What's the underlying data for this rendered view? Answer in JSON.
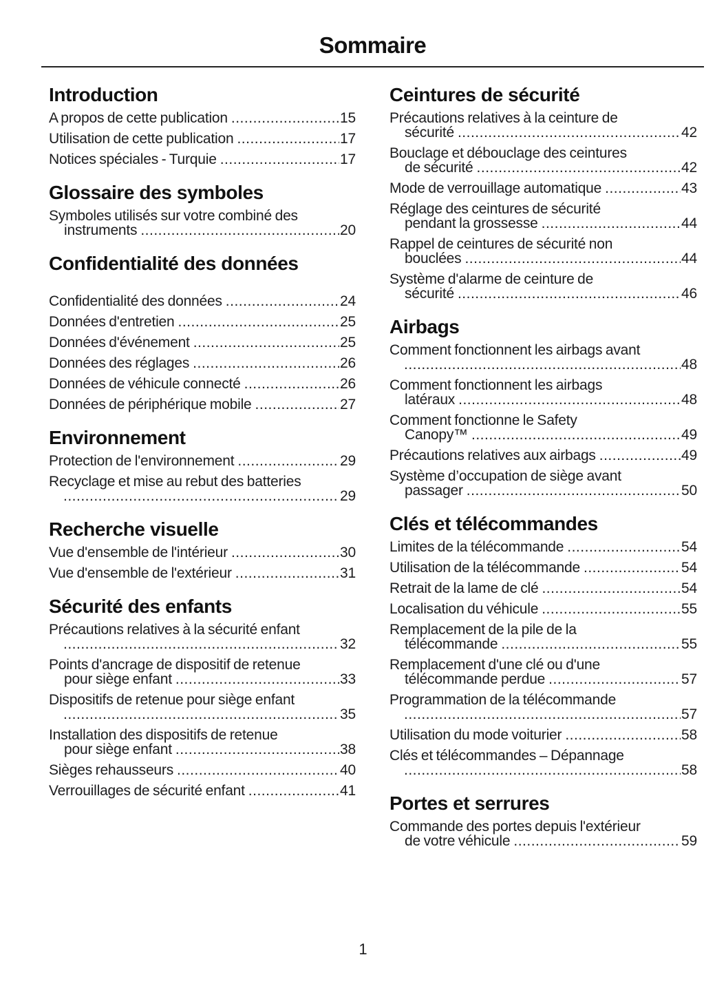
{
  "page": {
    "title": "Sommaire",
    "page_number": "1"
  },
  "columns": [
    {
      "sections": [
        {
          "heading": "Introduction",
          "spaced": false,
          "entries": [
            {
              "lines": [
                {
                  "text": "A propos de cette publication",
                  "page": "15"
                }
              ]
            },
            {
              "lines": [
                {
                  "text": "Utilisation de cette publication",
                  "page": "17"
                }
              ]
            },
            {
              "lines": [
                {
                  "text": "Notices spéciales - Turquie",
                  "page": "17"
                }
              ]
            }
          ]
        },
        {
          "heading": "Glossaire des symboles",
          "spaced": false,
          "entries": [
            {
              "lines": [
                {
                  "text": "Symboles utilisés sur votre combiné des"
                },
                {
                  "text": "instruments",
                  "page": "20"
                }
              ]
            }
          ]
        },
        {
          "heading": "Confidentialité des données",
          "spaced": true,
          "entries": [
            {
              "lines": [
                {
                  "text": "Confidentialité des données",
                  "page": "24"
                }
              ]
            },
            {
              "lines": [
                {
                  "text": "Données d'entretien",
                  "page": "25"
                }
              ]
            },
            {
              "lines": [
                {
                  "text": "Données d'événement",
                  "page": "25"
                }
              ]
            },
            {
              "lines": [
                {
                  "text": "Données des réglages",
                  "page": "26"
                }
              ]
            },
            {
              "lines": [
                {
                  "text": "Données de véhicule connecté",
                  "page": "26"
                }
              ]
            },
            {
              "lines": [
                {
                  "text": "Données de périphérique mobile",
                  "page": "27"
                }
              ]
            }
          ]
        },
        {
          "heading": "Environnement",
          "spaced": false,
          "entries": [
            {
              "lines": [
                {
                  "text": "Protection de l'environnement",
                  "page": "29"
                }
              ]
            },
            {
              "lines": [
                {
                  "text": "Recyclage et mise au rebut des batteries"
                },
                {
                  "text": "",
                  "page": "29"
                }
              ]
            }
          ]
        },
        {
          "heading": "Recherche visuelle",
          "spaced": false,
          "entries": [
            {
              "lines": [
                {
                  "text": "Vue d'ensemble de l'intérieur",
                  "page": "30"
                }
              ]
            },
            {
              "lines": [
                {
                  "text": "Vue d'ensemble de l'extérieur",
                  "page": "31"
                }
              ]
            }
          ]
        },
        {
          "heading": "Sécurité des enfants",
          "spaced": false,
          "entries": [
            {
              "lines": [
                {
                  "text": "Précautions relatives à la sécurité enfant"
                },
                {
                  "text": "",
                  "page": "32"
                }
              ]
            },
            {
              "lines": [
                {
                  "text": "Points d'ancrage de dispositif de retenue"
                },
                {
                  "text": "pour siège enfant",
                  "page": "33"
                }
              ]
            },
            {
              "lines": [
                {
                  "text": "Dispositifs de retenue pour siège enfant"
                },
                {
                  "text": "",
                  "page": "35"
                }
              ]
            },
            {
              "lines": [
                {
                  "text": "Installation des dispositifs de retenue"
                },
                {
                  "text": "pour siège enfant",
                  "page": "38"
                }
              ]
            },
            {
              "lines": [
                {
                  "text": "Sièges rehausseurs",
                  "page": "40"
                }
              ]
            },
            {
              "lines": [
                {
                  "text": "Verrouillages de sécurité enfant",
                  "page": "41"
                }
              ]
            }
          ]
        }
      ]
    },
    {
      "sections": [
        {
          "heading": "Ceintures de sécurité",
          "spaced": false,
          "entries": [
            {
              "lines": [
                {
                  "text": "Précautions relatives à la ceinture de"
                },
                {
                  "text": "sécurité",
                  "page": "42"
                }
              ]
            },
            {
              "lines": [
                {
                  "text": "Bouclage et débouclage des ceintures"
                },
                {
                  "text": "de sécurité",
                  "page": "42"
                }
              ]
            },
            {
              "lines": [
                {
                  "text": "Mode de verrouillage automatique",
                  "page": "43"
                }
              ]
            },
            {
              "lines": [
                {
                  "text": "Réglage des ceintures de sécurité"
                },
                {
                  "text": "pendant la grossesse",
                  "page": "44"
                }
              ]
            },
            {
              "lines": [
                {
                  "text": "Rappel de ceintures de sécurité non"
                },
                {
                  "text": "bouclées",
                  "page": "44"
                }
              ]
            },
            {
              "lines": [
                {
                  "text": "Système d'alarme de ceinture de"
                },
                {
                  "text": "sécurité",
                  "page": "46"
                }
              ]
            }
          ]
        },
        {
          "heading": "Airbags",
          "spaced": false,
          "entries": [
            {
              "lines": [
                {
                  "text": "Comment fonctionnent les airbags avant"
                },
                {
                  "text": "",
                  "page": "48"
                }
              ]
            },
            {
              "lines": [
                {
                  "text": "Comment fonctionnent les airbags"
                },
                {
                  "text": "latéraux",
                  "page": "48"
                }
              ]
            },
            {
              "lines": [
                {
                  "text": "Comment fonctionne le Safety"
                },
                {
                  "text": "Canopy™",
                  "page": "49"
                }
              ]
            },
            {
              "lines": [
                {
                  "text": "Précautions relatives aux airbags",
                  "page": "49"
                }
              ]
            },
            {
              "lines": [
                {
                  "text": "Système d’occupation de siège avant"
                },
                {
                  "text": "passager",
                  "page": "50"
                }
              ]
            }
          ]
        },
        {
          "heading": "Clés et télécommandes",
          "spaced": false,
          "entries": [
            {
              "lines": [
                {
                  "text": "Limites de la télécommande",
                  "page": "54"
                }
              ]
            },
            {
              "lines": [
                {
                  "text": "Utilisation de la télécommande",
                  "page": "54"
                }
              ]
            },
            {
              "lines": [
                {
                  "text": "Retrait de la lame de clé",
                  "page": "54"
                }
              ]
            },
            {
              "lines": [
                {
                  "text": "Localisation du véhicule",
                  "page": "55"
                }
              ]
            },
            {
              "lines": [
                {
                  "text": "Remplacement de la pile de la"
                },
                {
                  "text": "télécommande",
                  "page": "55"
                }
              ]
            },
            {
              "lines": [
                {
                  "text": "Remplacement d'une clé ou d'une"
                },
                {
                  "text": "télécommande perdue",
                  "page": "57"
                }
              ]
            },
            {
              "lines": [
                {
                  "text": "Programmation de la télécommande"
                },
                {
                  "text": "",
                  "page": "57"
                }
              ]
            },
            {
              "lines": [
                {
                  "text": "Utilisation du mode voiturier",
                  "page": "58"
                }
              ]
            },
            {
              "lines": [
                {
                  "text": "Clés et télécommandes – Dépannage"
                },
                {
                  "text": "",
                  "page": "58"
                }
              ]
            }
          ]
        },
        {
          "heading": "Portes et serrures",
          "spaced": false,
          "entries": [
            {
              "lines": [
                {
                  "text": "Commande des portes depuis l'extérieur"
                },
                {
                  "text": "de votre véhicule",
                  "page": "59"
                }
              ]
            }
          ]
        }
      ]
    }
  ]
}
